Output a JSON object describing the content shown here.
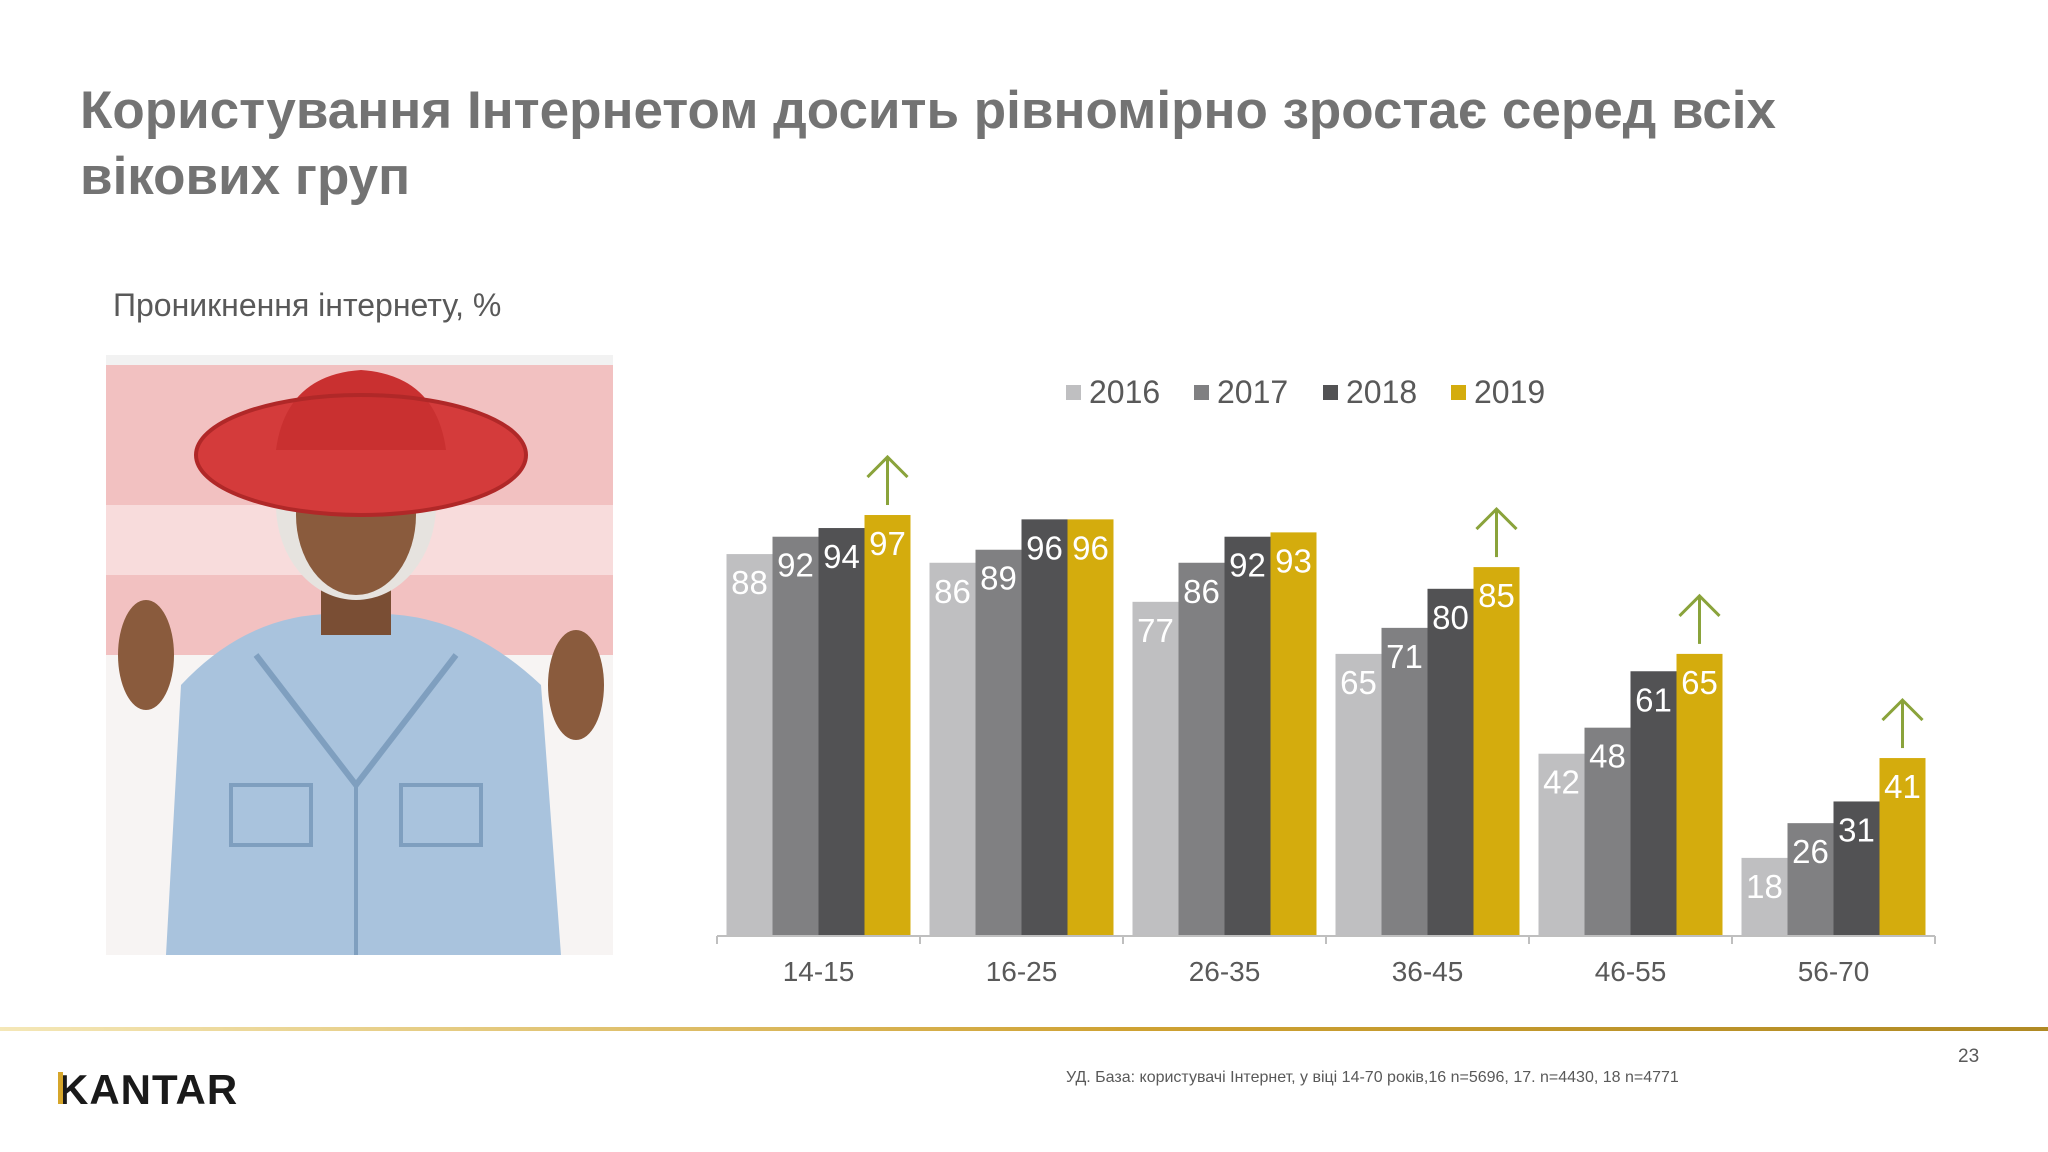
{
  "slide": {
    "title": "Користування Інтернетом досить рівномірно зростає серед всіх вікових груп",
    "subtitle": "Проникнення інтернету, %",
    "page_number": "23",
    "footnote": "УД. База: користувачі  Інтернет, у віці 14-70 років,16 n=5696, 17. n=4430, 18 n=4771",
    "logo": "KANTAR"
  },
  "colors": {
    "2016": "#bfbfc1",
    "2017": "#808082",
    "2018": "#525254",
    "2019": "#d4ac0d",
    "arrow": "#8aa33b"
  },
  "chart_data": {
    "type": "bar",
    "title": "",
    "xlabel": "",
    "ylabel": "",
    "ylim": [
      0,
      100
    ],
    "grid": false,
    "legend": "top",
    "categories": [
      "14-15",
      "16-25",
      "26-35",
      "36-45",
      "46-55",
      "56-70"
    ],
    "series": [
      {
        "name": "2016",
        "values": [
          88,
          86,
          77,
          65,
          42,
          18
        ]
      },
      {
        "name": "2017",
        "values": [
          92,
          89,
          86,
          71,
          48,
          26
        ]
      },
      {
        "name": "2018",
        "values": [
          94,
          96,
          92,
          80,
          61,
          31
        ]
      },
      {
        "name": "2019",
        "values": [
          97,
          96,
          93,
          85,
          65,
          41
        ]
      }
    ],
    "annotations": [
      {
        "type": "up-arrow",
        "category": "14-15"
      },
      {
        "type": "up-arrow",
        "category": "36-45"
      },
      {
        "type": "up-arrow",
        "category": "46-55"
      },
      {
        "type": "up-arrow",
        "category": "56-70"
      }
    ]
  }
}
